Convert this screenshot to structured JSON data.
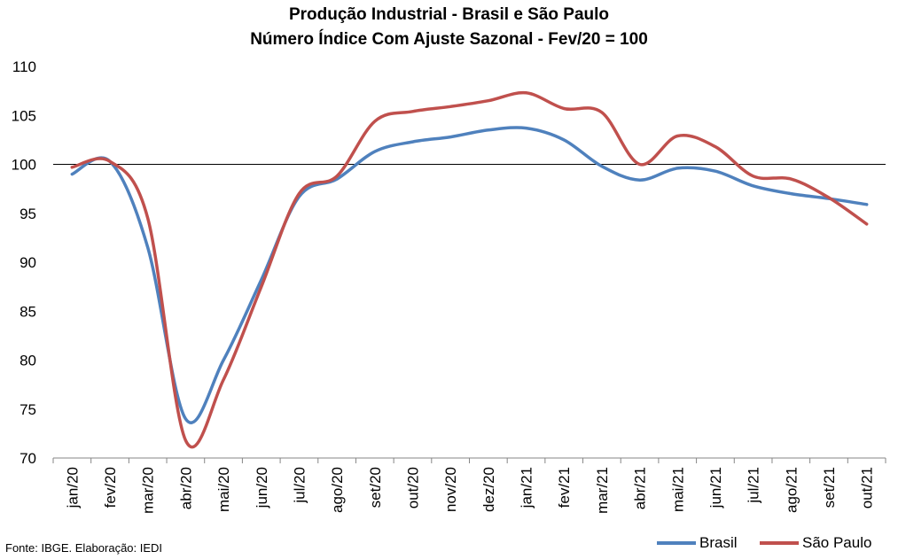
{
  "header": {
    "title": "Produção Industrial - Brasil e São Paulo",
    "subtitle": "Número Índice Com Ajuste Sazonal - Fev/20 = 100"
  },
  "footer": {
    "source": "Fonte: IBGE. Elaboração: IEDI"
  },
  "legend": {
    "brasil": "Brasil",
    "sao_paulo": "São Paulo"
  },
  "colors": {
    "brasil": "#4F81BD",
    "sao_paulo": "#C0504D",
    "reference_line": "#000000",
    "axis": "#868686"
  },
  "chart_data": {
    "type": "line",
    "title": "Produção Industrial - Brasil e São Paulo",
    "subtitle": "Número Índice Com Ajuste Sazonal - Fev/20 = 100",
    "categories": [
      "jan/20",
      "fev/20",
      "mar/20",
      "abr/20",
      "mai/20",
      "jun/20",
      "jul/20",
      "ago/20",
      "set/20",
      "out/20",
      "nov/20",
      "dez/20",
      "jan/21",
      "fev/21",
      "mar/21",
      "abr/21",
      "mai/21",
      "jun/21",
      "jul/21",
      "ago/21",
      "set/21",
      "out/21"
    ],
    "ylim": [
      70,
      110
    ],
    "yticks": [
      70,
      75,
      80,
      85,
      90,
      95,
      100,
      105,
      110
    ],
    "reference_line": 100,
    "grid": false,
    "legend_position": "bottom-right",
    "series": [
      {
        "name": "Brasil",
        "color": "#4F81BD",
        "values": [
          99.0,
          100.3,
          91.5,
          74.0,
          80.0,
          88.2,
          96.7,
          98.5,
          101.3,
          102.3,
          102.8,
          103.5,
          103.7,
          102.5,
          99.8,
          98.4,
          99.6,
          99.3,
          97.8,
          97.0,
          96.5,
          95.9
        ]
      },
      {
        "name": "São Paulo",
        "color": "#C0504D",
        "values": [
          99.7,
          100.3,
          94.5,
          71.8,
          78.0,
          87.5,
          97.0,
          98.8,
          104.4,
          105.4,
          105.9,
          106.5,
          107.3,
          105.7,
          105.3,
          100.0,
          102.9,
          101.8,
          98.8,
          98.5,
          96.6,
          93.9
        ]
      }
    ]
  }
}
